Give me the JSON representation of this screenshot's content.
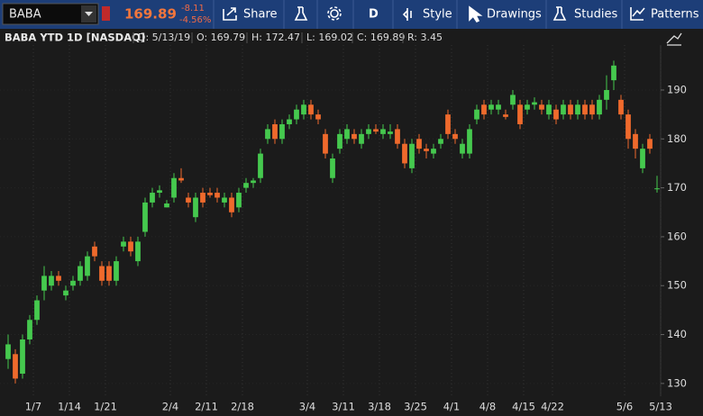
{
  "toolbar": {
    "symbol": "BABA",
    "last": "169.89",
    "change": "-8.11",
    "change_pct": "-4.56%",
    "buttons": [
      "Share",
      "D",
      "Style",
      "Drawings",
      "Studies",
      "Patterns"
    ]
  },
  "chart_data": {
    "type": "candlestick",
    "title": "BABA YTD 1D [NASDAQ]",
    "info": [
      "D: 5/13/19",
      "O: 169.79",
      "H: 172.47",
      "L: 169.02",
      "C: 169.89",
      "R: 3.45"
    ],
    "up_color": "#45c94e",
    "down_color": "#ef6a2c",
    "grid": true,
    "categories": [
      null,
      null,
      null,
      "1/7",
      null,
      null,
      null,
      null,
      "1/14",
      null,
      null,
      null,
      null,
      "1/21",
      null,
      null,
      null,
      null,
      null,
      null,
      null,
      null,
      "2/4",
      null,
      null,
      null,
      null,
      "2/11",
      null,
      null,
      null,
      null,
      "2/18",
      null,
      null,
      null,
      null,
      null,
      null,
      null,
      null,
      "3/4",
      null,
      null,
      null,
      null,
      "3/11",
      null,
      null,
      null,
      null,
      "3/18",
      null,
      null,
      null,
      null,
      "3/25",
      null,
      null,
      null,
      null,
      "4/1",
      null,
      null,
      null,
      null,
      "4/8",
      null,
      null,
      null,
      null,
      "4/15",
      null,
      null,
      null,
      "4/22",
      null,
      null,
      null,
      null,
      null,
      null,
      null,
      null,
      null,
      "5/6",
      null,
      null,
      null,
      null,
      "5/13"
    ],
    "open": [
      135,
      136,
      132,
      139,
      143,
      149,
      150,
      152,
      148,
      150,
      151,
      152,
      158,
      154,
      154,
      151,
      158,
      159,
      155,
      161,
      167,
      169,
      166,
      168,
      172,
      168,
      164,
      169,
      169,
      169,
      167,
      168,
      166,
      170,
      171,
      172,
      180,
      183,
      180,
      183,
      184,
      185,
      187,
      185,
      181,
      172,
      178,
      180,
      181,
      179,
      181,
      182,
      181,
      181,
      182,
      179,
      174,
      180,
      178,
      177,
      179,
      185,
      181,
      177,
      177,
      184,
      187,
      186,
      186,
      185,
      187,
      187,
      186,
      187,
      187,
      185,
      186,
      185,
      187,
      185,
      187,
      187,
      185,
      188,
      192,
      188,
      185,
      181,
      174,
      180,
      169.79
    ],
    "high": [
      140,
      137,
      140,
      144,
      148,
      154,
      153,
      153,
      150,
      152,
      155,
      157,
      159,
      155,
      155,
      156,
      160,
      160,
      160,
      168,
      170,
      170.5,
      167.5,
      173,
      174,
      169,
      169,
      170,
      170,
      170,
      169,
      169,
      170,
      172,
      172,
      178,
      183,
      184,
      184,
      185,
      187,
      188,
      188,
      186,
      182,
      177,
      182,
      183,
      182,
      182,
      183,
      183,
      183,
      183,
      183,
      180,
      180,
      181,
      179,
      179,
      181,
      186,
      182,
      180,
      183,
      187,
      188,
      188,
      188,
      186,
      190,
      188,
      188,
      188.5,
      188,
      188,
      187,
      188,
      188,
      188,
      188,
      188,
      189,
      193,
      196,
      189,
      186,
      182,
      179,
      181,
      172.47
    ],
    "low": [
      133,
      130,
      131,
      138,
      142,
      147,
      149,
      150,
      147,
      149,
      150,
      151,
      155,
      150,
      150,
      150,
      157,
      156,
      154,
      160,
      166,
      168,
      166,
      167,
      171,
      166,
      163,
      166,
      168,
      167,
      166,
      164,
      165,
      169,
      170,
      171,
      179,
      179,
      179,
      182,
      183,
      184,
      184,
      183,
      176,
      171,
      177,
      179,
      179,
      178,
      180,
      181,
      180,
      180,
      178,
      174,
      173,
      177,
      176,
      176,
      178,
      180,
      179,
      176,
      176,
      183,
      184,
      185,
      185,
      184,
      186,
      182,
      185,
      186,
      185,
      184,
      183,
      184,
      184,
      184,
      184,
      184,
      184,
      186,
      190,
      184,
      178,
      176,
      173,
      177,
      169.02
    ],
    "close": [
      138,
      131,
      139,
      143,
      147,
      152,
      152,
      151,
      149,
      151,
      154,
      156,
      156,
      151,
      151,
      155,
      159,
      157,
      159,
      167,
      169,
      169.5,
      166.8,
      172,
      171.5,
      167,
      168,
      167,
      168.5,
      168,
      168,
      165,
      169,
      171,
      171.5,
      177,
      182,
      180,
      183,
      184,
      186,
      187,
      185,
      184,
      177,
      176,
      181,
      182,
      180,
      181,
      182,
      181.5,
      182,
      181.5,
      179,
      175,
      179,
      178,
      177.5,
      178,
      180,
      181,
      180,
      179,
      182,
      186,
      185,
      187,
      187,
      184.5,
      189,
      183,
      187,
      187.5,
      186,
      187,
      184,
      187,
      185,
      187,
      185,
      185,
      188,
      190,
      195,
      185,
      180,
      178,
      178,
      178,
      169.89
    ],
    "ylim": [
      127.4,
      199.2
    ],
    "yticks": [
      130,
      140,
      150,
      160,
      170,
      180,
      190
    ]
  }
}
